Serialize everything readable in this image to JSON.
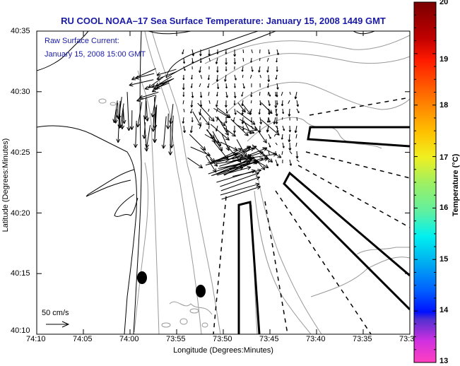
{
  "title": "RU COOL  NOAA–17  Sea Surface Temperature:  January 15, 2008 1449 GMT",
  "annotation": {
    "line1": "Raw Surface Current:",
    "line2": "January 15, 2008 15:00 GMT"
  },
  "x_axis": {
    "label": "Longitude (Degrees:Minutes)",
    "ticks": [
      "74:10",
      "74:05",
      "74:00",
      "73:55",
      "73:50",
      "73:45",
      "73:40",
      "73:35",
      "73:3"
    ]
  },
  "y_axis": {
    "label": "Latitude (Degrees:Minutes)",
    "ticks": [
      "40:35",
      "40:30",
      "40:25",
      "40:20",
      "40:15",
      "40:10"
    ]
  },
  "colorbar": {
    "label": "Temperature (°C)",
    "ticks": [
      "20",
      "19",
      "18",
      "17",
      "16",
      "15",
      "14",
      "13"
    ],
    "range": [
      13,
      20
    ]
  },
  "scale": {
    "label": "50 cm/s"
  },
  "colors": {
    "title": "#1a1aa6",
    "contour": "#999999",
    "coast": "#000000"
  }
}
